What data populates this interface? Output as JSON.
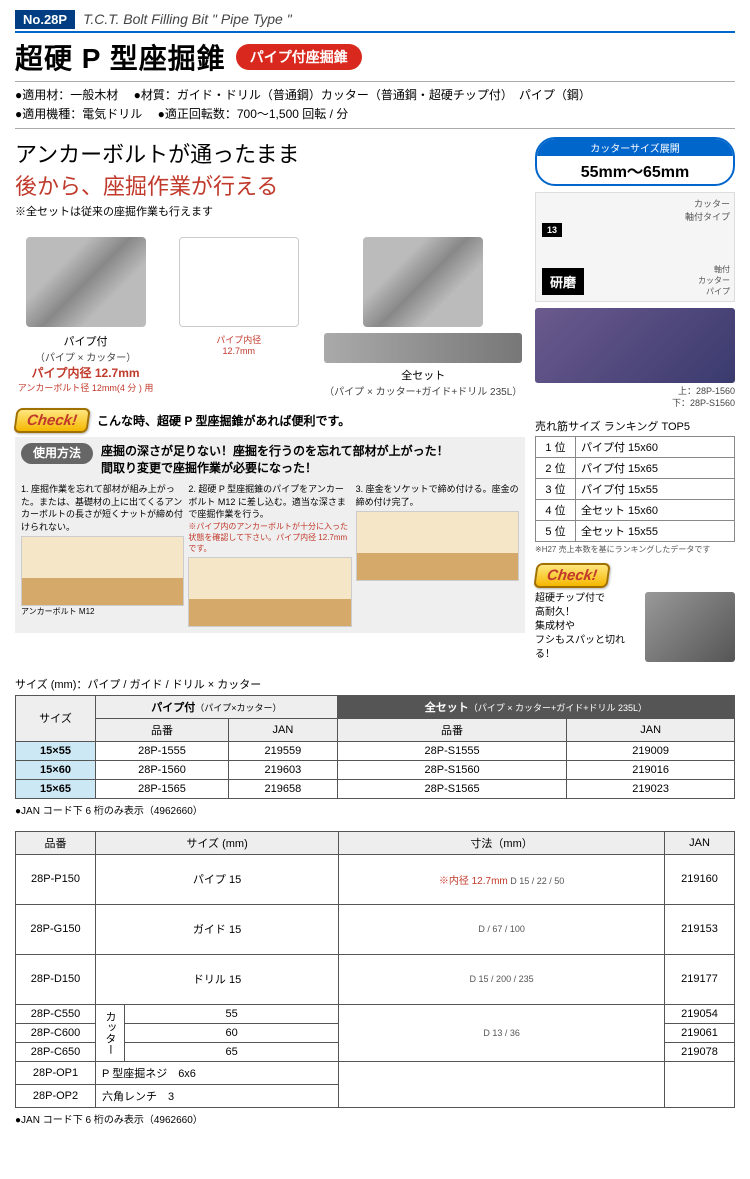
{
  "header": {
    "no": "No.28P",
    "eng": "T.C.T. Bolt Filling Bit \" Pipe Type \"",
    "title": "超硬 P 型座掘錐",
    "pill": "パイプ付座掘錐"
  },
  "specs": {
    "line1a": "適用材：一般木材",
    "line1b": "材質：ガイド・ドリル（普通鋼）カッター（普通鋼・超硬チップ付）　パイプ（鋼）",
    "line2a": "適用機種：電気ドリル",
    "line2b": "適正回転数：700～1,500 回転 / 分"
  },
  "headline": {
    "l1": "アンカーボルトが通ったまま",
    "l2": "後から、座掘作業が行える",
    "note": "※全セットは従来の座掘作業も行えます"
  },
  "products": {
    "p1": {
      "name": "パイプ付",
      "sub": "（パイプ × カッター）",
      "red": "パイプ内径 12.7mm",
      "redsub": "アンカーボルト径 12mm(4 分 ) 用"
    },
    "p2": {
      "dimlabel": "パイプ内径\n12.7mm"
    },
    "p3": {
      "name": "全セット",
      "sub": "（パイプ × カッター+ガイド+ドリル 235L）"
    }
  },
  "cutter_range": {
    "top": "カッターサイズ展開",
    "bot": "55mm～65mm"
  },
  "diagram": {
    "kenma": "研磨",
    "upper": "カッター\n軸付タイプ",
    "num": "13",
    "lower": "軸付\nカッター\nパイプ"
  },
  "pkg": {
    "cap1": "上：28P-1560",
    "cap2": "下：28P-S1560"
  },
  "ranking": {
    "title": "売れ筋サイズ ランキング TOP5",
    "rows": [
      [
        "1 位",
        "パイプ付 15x60"
      ],
      [
        "2 位",
        "パイプ付 15x65"
      ],
      [
        "3 位",
        "パイプ付 15x55"
      ],
      [
        "4 位",
        "全セット 15x60"
      ],
      [
        "5 位",
        "全セット 15x55"
      ]
    ],
    "note": "※H27 売上本数を基にランキングしたデータです"
  },
  "check": {
    "badge": "Check!",
    "line": "こんな時、超硬 P 型座掘錐があれば便利です。"
  },
  "usage": {
    "btn": "使用方法",
    "bold": "座掘の深さが足りない！座掘を行うのを忘れて部材が上がった！\n間取り変更で座掘作業が必要になった！",
    "s1": "1. 座掘作業を忘れて部材が組み上がった。または、基礎材の上に出てくるアンカーボルトの長さが短くナットが締め付けられない。",
    "s1_l1": "パイプ",
    "s1_l2": "アンカーボルト M12",
    "s2": "2. 超硬 P 型座掘錐のパイプをアンカーボルト M12 に差し込む。適当な深さまで座掘作業を行う。",
    "s2_red": "※パイプ内のアンカーボルトが十分に入った状態を確認して下さい。パイプ内径 12.7mm です。",
    "s3": "3. 座金をソケットで締め付ける。座金の締め付け完了。"
  },
  "check2": {
    "text": "超硬チップ付で\n高耐久！\n集成材や\nフシもスパッと切れる！"
  },
  "size_table": {
    "header": "サイズ (mm)：パイプ / ガイド / ドリル × カッター",
    "h_size": "サイズ",
    "h_pipe": "パイプ付",
    "h_pipe_sub": "（パイプ×カッター）",
    "h_set": "全セット",
    "h_set_sub": "（パイプ × カッター+ガイド+ドリル 235L）",
    "h_pn": "品番",
    "h_jan": "JAN",
    "rows": [
      [
        "15×55",
        "28P-1555",
        "219559",
        "28P-S1555",
        "219009"
      ],
      [
        "15×60",
        "28P-1560",
        "219603",
        "28P-S1560",
        "219016"
      ],
      [
        "15×65",
        "28P-1565",
        "219658",
        "28P-S1565",
        "219023"
      ]
    ],
    "note": "●JAN コード下 6 桁のみ表示（4962660）"
  },
  "parts_table": {
    "h_pn": "品番",
    "h_size": "サイズ (mm)",
    "h_dim": "寸法（mm）",
    "h_jan": "JAN",
    "red_note": "※内径 12.7mm",
    "rows": [
      {
        "pn": "28P-P150",
        "size": "パイプ 15",
        "dims": "D 15 / 22 / 50",
        "jan": "219160"
      },
      {
        "pn": "28P-G150",
        "size": "ガイド 15",
        "dims": "D / 67 / 100",
        "jan": "219153"
      },
      {
        "pn": "28P-D150",
        "size": "ドリル 15",
        "dims": "D 15 / 200 / 235",
        "jan": "219177"
      }
    ],
    "cutter_label": "カッター",
    "cutter_rows": [
      {
        "pn": "28P-C550",
        "size": "55",
        "jan": "219054"
      },
      {
        "pn": "28P-C600",
        "size": "60",
        "jan": "219061"
      },
      {
        "pn": "28P-C650",
        "size": "65",
        "jan": "219078"
      }
    ],
    "cutter_dims": "D 13 / 36",
    "op_rows": [
      {
        "pn": "28P-OP1",
        "size": "P 型座掘ネジ　6x6"
      },
      {
        "pn": "28P-OP2",
        "size": "六角レンチ　3"
      }
    ],
    "note": "●JAN コード下 6 桁のみ表示（4962660）"
  }
}
